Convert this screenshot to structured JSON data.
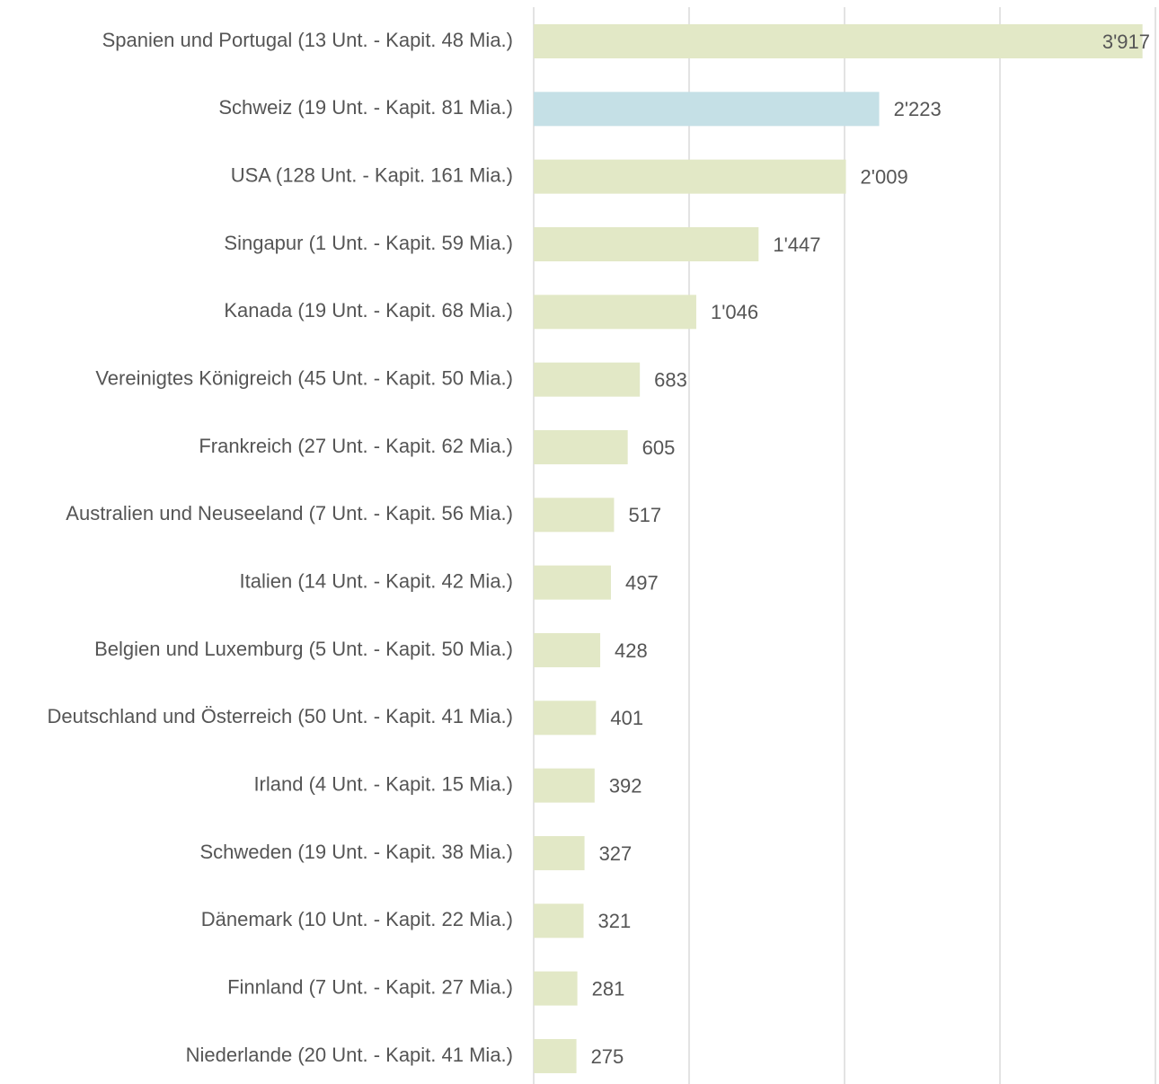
{
  "chart_data": {
    "type": "barh",
    "categories": [
      "Spanien und Portugal (13 Unt. - Kapit. 48 Mia.)",
      "Schweiz (19 Unt. - Kapit. 81 Mia.)",
      "USA (128 Unt. - Kapit. 161 Mia.)",
      "Singapur (1 Unt. - Kapit. 59 Mia.)",
      "Kanada (19 Unt. - Kapit. 68 Mia.)",
      "Vereinigtes Königreich (45 Unt. - Kapit. 50 Mia.)",
      "Frankreich (27 Unt. - Kapit. 62 Mia.)",
      "Australien und Neuseeland (7 Unt. - Kapit. 56 Mia.)",
      "Italien (14 Unt. - Kapit. 42 Mia.)",
      "Belgien und Luxemburg (5 Unt. - Kapit. 50 Mia.)",
      "Deutschland und Österreich (50 Unt. - Kapit. 41 Mia.)",
      "Irland (4 Unt. - Kapit. 15 Mia.)",
      "Schweden (19 Unt. - Kapit. 38 Mia.)",
      "Dänemark (10 Unt. - Kapit. 22 Mia.)",
      "Finnland (7 Unt. - Kapit. 27 Mia.)",
      "Niederlande (20 Unt. - Kapit. 41 Mia.)"
    ],
    "values": [
      3917,
      2223,
      2009,
      1447,
      1046,
      683,
      605,
      517,
      497,
      428,
      401,
      392,
      327,
      321,
      281,
      275
    ],
    "value_labels": [
      "3'917",
      "2'223",
      "2'009",
      "1'447",
      "1'046",
      "683",
      "605",
      "517",
      "497",
      "428",
      "401",
      "392",
      "327",
      "321",
      "281",
      "275"
    ],
    "colors": [
      "#e2e8c6",
      "#c5e0e6",
      "#e2e8c6",
      "#e2e8c6",
      "#e2e8c6",
      "#e2e8c6",
      "#e2e8c6",
      "#e2e8c6",
      "#e2e8c6",
      "#e2e8c6",
      "#e2e8c6",
      "#e2e8c6",
      "#e2e8c6",
      "#e2e8c6",
      "#e2e8c6",
      "#e2e8c6"
    ],
    "xlim": [
      0,
      4000
    ],
    "xticks": [
      0,
      1000,
      2000,
      3000,
      4000
    ],
    "grid": true
  }
}
